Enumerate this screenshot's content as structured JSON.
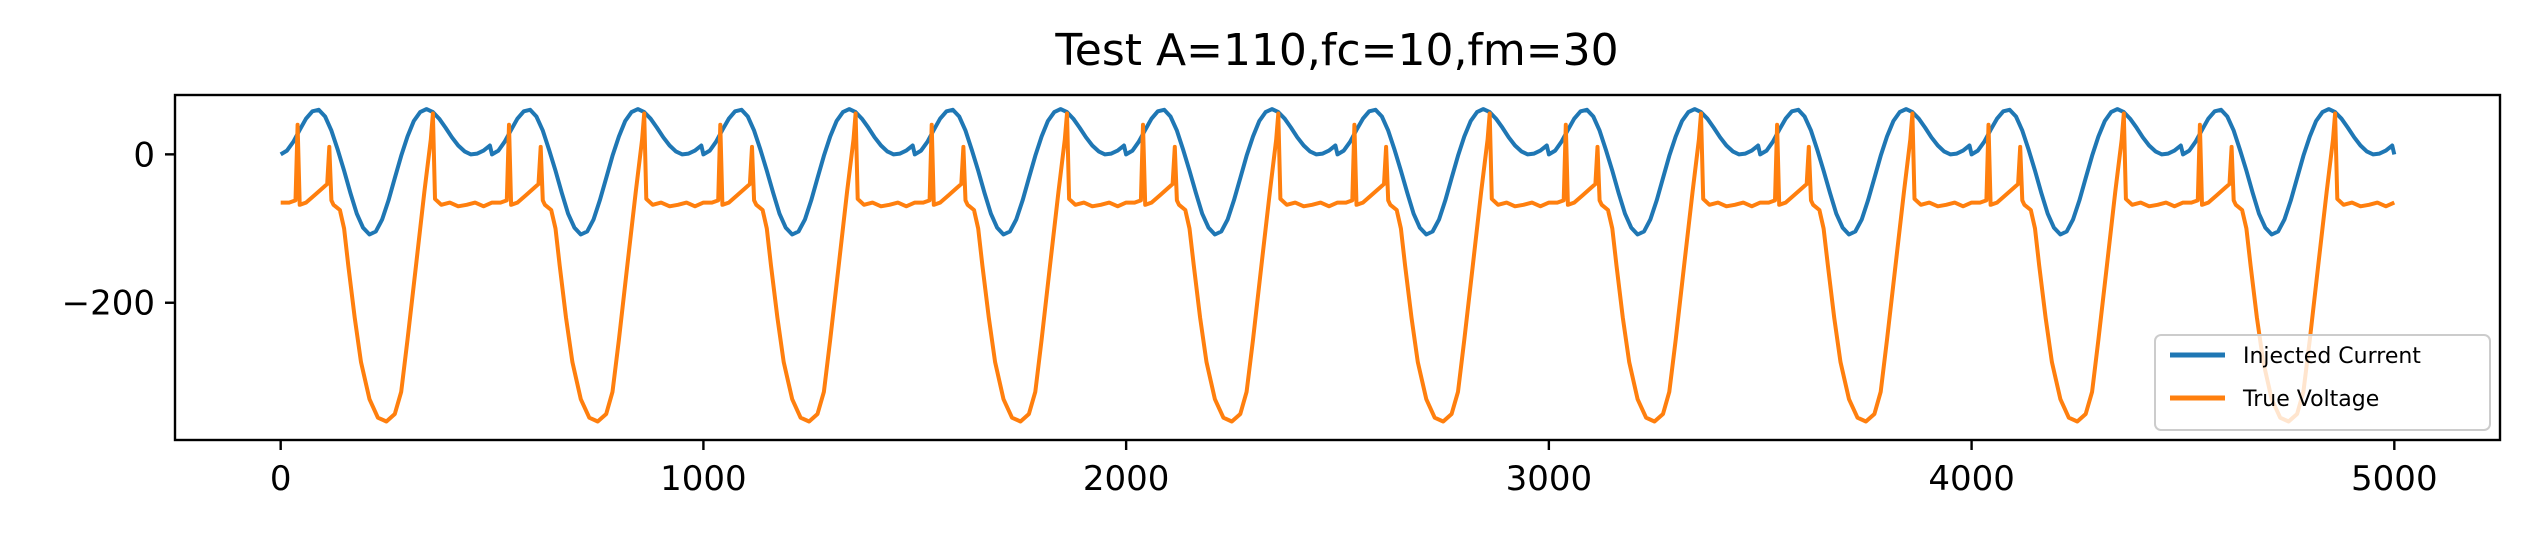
{
  "chart_data": {
    "type": "line",
    "title": "Test A=110,fc=10,fm=30",
    "xlabel": "",
    "ylabel": "",
    "xlim": [
      -250,
      5250
    ],
    "ylim": [
      -385,
      80
    ],
    "xticks": [
      0,
      1000,
      2000,
      3000,
      4000,
      5000
    ],
    "xtick_labels": [
      "0",
      "1000",
      "2000",
      "3000",
      "4000",
      "5000"
    ],
    "yticks": [
      0,
      -200
    ],
    "ytick_labels": [
      "0",
      "−200"
    ],
    "grid": false,
    "legend_position": "lower-right",
    "series": [
      {
        "name": "Injected Current",
        "color": "#1f77b4",
        "x": [
          0,
          15,
          30,
          45,
          60,
          75,
          90,
          105,
          120,
          135,
          150,
          165,
          180,
          195,
          210,
          225,
          240,
          255,
          270,
          285,
          300,
          315,
          330,
          345,
          360,
          375,
          390,
          405,
          420,
          435,
          450,
          465,
          480,
          495,
          500
        ],
        "values": [
          0,
          5,
          17,
          33,
          48,
          58,
          60,
          51,
          32,
          6,
          -22,
          -52,
          -80,
          -99,
          -108,
          -104,
          -88,
          -62,
          -32,
          -2,
          24,
          45,
          57,
          61,
          57,
          48,
          36,
          23,
          12,
          4,
          0,
          1,
          5,
          12,
          0
        ]
      },
      {
        "name": "True Voltage",
        "color": "#ff7f0e",
        "x": [
          0,
          20,
          35,
          40,
          45,
          60,
          80,
          100,
          110,
          115,
          120,
          125,
          140,
          150,
          160,
          175,
          190,
          210,
          230,
          250,
          270,
          285,
          300,
          320,
          340,
          355,
          360,
          365,
          380,
          400,
          420,
          440,
          460,
          480,
          500
        ],
        "values": [
          -65,
          -65,
          -62,
          40,
          -68,
          -65,
          -55,
          -45,
          -40,
          10,
          -62,
          -68,
          -75,
          -100,
          -150,
          -220,
          -280,
          -330,
          -355,
          -360,
          -350,
          -320,
          -250,
          -150,
          -50,
          20,
          55,
          -60,
          -68,
          -65,
          -70,
          -68,
          -65,
          -70,
          -65
        ]
      }
    ]
  }
}
